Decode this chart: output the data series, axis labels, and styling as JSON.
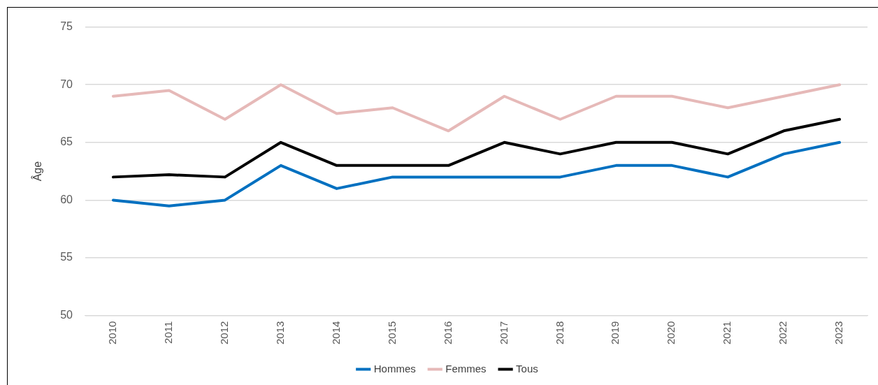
{
  "chart_data": {
    "type": "line",
    "ylabel": "Âge",
    "categories": [
      "2010",
      "2011",
      "2012",
      "2013",
      "2014",
      "2015",
      "2016",
      "2017",
      "2018",
      "2019",
      "2020",
      "2021",
      "2022",
      "2023"
    ],
    "series": [
      {
        "name": "Hommes",
        "color": "#0070c0",
        "values": [
          60,
          59.5,
          60,
          63,
          61,
          62,
          62,
          62,
          62,
          63,
          63,
          62,
          64,
          65
        ]
      },
      {
        "name": "Femmes",
        "color": "#e6b9b8",
        "values": [
          69,
          69.5,
          67,
          70,
          67.5,
          68,
          66,
          69,
          67,
          69,
          69,
          68,
          69,
          70
        ]
      },
      {
        "name": "Tous",
        "color": "#000000",
        "values": [
          62,
          62.2,
          62,
          65,
          63,
          63,
          63,
          65,
          64,
          65,
          65,
          64,
          66,
          67
        ]
      }
    ],
    "ylim": [
      50,
      75
    ],
    "yticks": [
      50,
      55,
      60,
      65,
      70,
      75
    ],
    "grid": "y",
    "legend": "bottom",
    "marker": "none",
    "line_style": "solid"
  }
}
